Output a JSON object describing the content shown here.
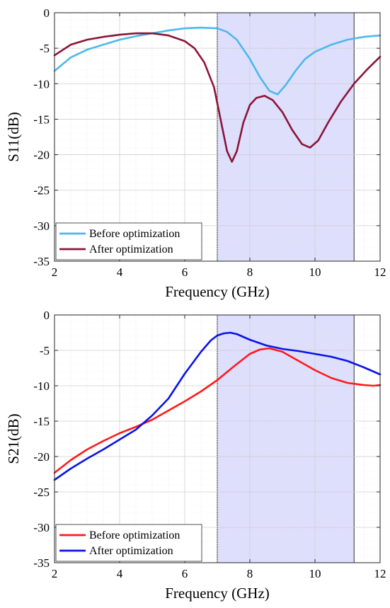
{
  "chart_data": [
    {
      "type": "line",
      "title": "",
      "xlabel": "Frequency (GHz)",
      "ylabel": "S11(dB)",
      "xlim": [
        2,
        12
      ],
      "ylim": [
        -35,
        0
      ],
      "xticks": [
        2,
        4,
        6,
        8,
        10,
        12
      ],
      "yticks": [
        0,
        -5,
        -10,
        -15,
        -20,
        -25,
        -30,
        -35
      ],
      "grid": "on",
      "legend_position": "bottom-left",
      "shaded_band": {
        "x_start": 7.0,
        "x_end": 11.2,
        "color": "#dedefd"
      },
      "series": [
        {
          "name": "Before optimization",
          "color": "#4db8ec",
          "x": [
            2,
            2.5,
            3,
            3.5,
            4,
            4.5,
            5,
            5.5,
            6,
            6.5,
            7,
            7.3,
            7.6,
            8,
            8.3,
            8.6,
            8.85,
            9.1,
            9.4,
            9.7,
            10,
            10.5,
            11,
            11.5,
            12
          ],
          "y": [
            -8.2,
            -6.3,
            -5.2,
            -4.5,
            -3.8,
            -3.3,
            -2.9,
            -2.5,
            -2.2,
            -2.1,
            -2.2,
            -2.7,
            -3.8,
            -6.5,
            -9.0,
            -11.0,
            -11.5,
            -10.2,
            -8.2,
            -6.5,
            -5.5,
            -4.5,
            -3.8,
            -3.4,
            -3.2
          ]
        },
        {
          "name": "After optimization",
          "color": "#8b1538",
          "x": [
            2,
            2.5,
            3,
            3.5,
            4,
            4.5,
            5,
            5.5,
            6,
            6.3,
            6.6,
            6.9,
            7.1,
            7.3,
            7.45,
            7.6,
            7.8,
            8,
            8.2,
            8.45,
            8.7,
            9,
            9.3,
            9.6,
            9.85,
            10.1,
            10.4,
            10.8,
            11.2,
            11.6,
            12
          ],
          "y": [
            -6.0,
            -4.5,
            -3.8,
            -3.4,
            -3.1,
            -2.9,
            -2.9,
            -3.2,
            -4.0,
            -5.0,
            -7.0,
            -10.5,
            -15.0,
            -19.5,
            -21.0,
            -19.5,
            -15.5,
            -13.0,
            -12.0,
            -11.7,
            -12.3,
            -14.0,
            -16.5,
            -18.5,
            -19.0,
            -18.0,
            -15.5,
            -12.5,
            -10.0,
            -8.0,
            -6.2
          ]
        }
      ]
    },
    {
      "type": "line",
      "title": "",
      "xlabel": "Frequency (GHz)",
      "ylabel": "S21(dB)",
      "xlim": [
        2,
        12
      ],
      "ylim": [
        -35,
        0
      ],
      "xticks": [
        2,
        4,
        6,
        8,
        10,
        12
      ],
      "yticks": [
        0,
        -5,
        -10,
        -15,
        -20,
        -25,
        -30,
        -35
      ],
      "grid": "on",
      "legend_position": "bottom-left",
      "shaded_band": {
        "x_start": 7.0,
        "x_end": 11.2,
        "color": "#dedefd"
      },
      "series": [
        {
          "name": "Before optimization",
          "color": "#ff1a1a",
          "x": [
            2,
            2.5,
            3,
            3.5,
            4,
            4.5,
            5,
            5.5,
            6,
            6.5,
            7,
            7.5,
            8,
            8.3,
            8.6,
            9,
            9.5,
            10,
            10.5,
            11,
            11.5,
            11.8,
            12
          ],
          "y": [
            -22.3,
            -20.5,
            -19.0,
            -17.8,
            -16.7,
            -15.8,
            -14.8,
            -13.5,
            -12.2,
            -10.8,
            -9.2,
            -7.3,
            -5.5,
            -4.9,
            -4.7,
            -5.2,
            -6.5,
            -7.8,
            -8.9,
            -9.6,
            -9.9,
            -10.0,
            -9.9
          ]
        },
        {
          "name": "After optimization",
          "color": "#0a14e6",
          "x": [
            2,
            2.5,
            3,
            3.5,
            4,
            4.5,
            5,
            5.5,
            6,
            6.5,
            6.8,
            7,
            7.2,
            7.4,
            7.6,
            8,
            8.5,
            9,
            9.5,
            10,
            10.5,
            11,
            11.5,
            12
          ],
          "y": [
            -23.3,
            -21.7,
            -20.3,
            -19.0,
            -17.6,
            -16.2,
            -14.2,
            -11.8,
            -8.3,
            -5.2,
            -3.6,
            -2.9,
            -2.6,
            -2.5,
            -2.7,
            -3.5,
            -4.3,
            -4.8,
            -5.1,
            -5.5,
            -5.9,
            -6.5,
            -7.4,
            -8.4
          ]
        }
      ]
    }
  ]
}
